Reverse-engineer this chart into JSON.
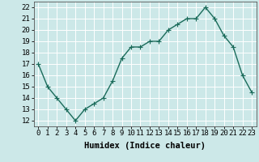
{
  "x": [
    0,
    1,
    2,
    3,
    4,
    5,
    6,
    7,
    8,
    9,
    10,
    11,
    12,
    13,
    14,
    15,
    16,
    17,
    18,
    19,
    20,
    21,
    22,
    23
  ],
  "y": [
    17,
    15,
    14,
    13,
    12,
    13,
    13.5,
    14,
    15.5,
    17.5,
    18.5,
    18.5,
    19,
    19,
    20,
    20.5,
    21,
    21,
    22,
    21,
    19.5,
    18.5,
    16,
    14.5
  ],
  "line_color": "#1a6b5a",
  "marker": "+",
  "bg_color": "#cce8e8",
  "grid_color": "#ffffff",
  "xlabel": "Humidex (Indice chaleur)",
  "ylim": [
    11.5,
    22.5
  ],
  "xlim": [
    -0.5,
    23.5
  ],
  "yticks": [
    12,
    13,
    14,
    15,
    16,
    17,
    18,
    19,
    20,
    21,
    22
  ],
  "xticks": [
    0,
    1,
    2,
    3,
    4,
    5,
    6,
    7,
    8,
    9,
    10,
    11,
    12,
    13,
    14,
    15,
    16,
    17,
    18,
    19,
    20,
    21,
    22,
    23
  ],
  "xlabel_fontsize": 7.5,
  "tick_fontsize": 6.5,
  "line_width": 1.0,
  "marker_size": 4
}
